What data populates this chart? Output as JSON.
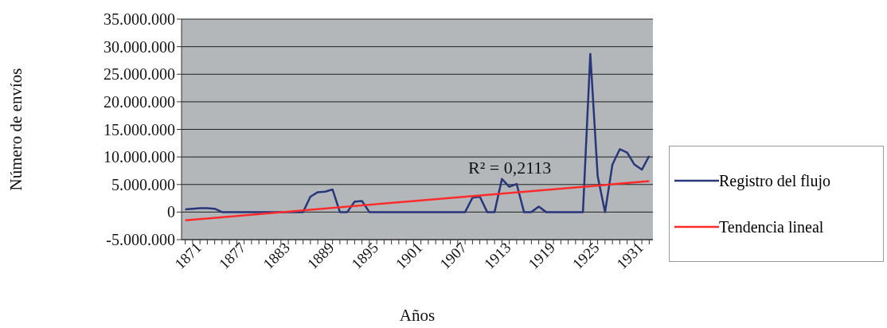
{
  "chart_data": {
    "type": "line",
    "xlabel": "Años",
    "ylabel": "Número de envíos",
    "x": [
      1871,
      1872,
      1873,
      1874,
      1875,
      1876,
      1877,
      1878,
      1879,
      1880,
      1881,
      1882,
      1883,
      1884,
      1885,
      1886,
      1887,
      1888,
      1889,
      1890,
      1891,
      1892,
      1893,
      1894,
      1895,
      1896,
      1897,
      1898,
      1899,
      1900,
      1901,
      1902,
      1903,
      1904,
      1905,
      1906,
      1907,
      1908,
      1909,
      1910,
      1911,
      1912,
      1913,
      1914,
      1915,
      1916,
      1917,
      1918,
      1919,
      1920,
      1921,
      1922,
      1923,
      1924,
      1925,
      1926,
      1927,
      1928,
      1929,
      1930,
      1931,
      1932,
      1933,
      1934
    ],
    "series": [
      {
        "name": "Registro del flujo",
        "color": "#28367a",
        "values": [
          500000,
          600000,
          700000,
          700000,
          600000,
          0,
          0,
          0,
          0,
          0,
          0,
          0,
          0,
          0,
          0,
          0,
          0,
          2800000,
          3600000,
          3700000,
          4100000,
          0,
          0,
          1900000,
          2000000,
          0,
          0,
          0,
          0,
          0,
          0,
          0,
          0,
          0,
          0,
          0,
          0,
          0,
          0,
          2600000,
          2800000,
          0,
          0,
          6000000,
          4600000,
          5100000,
          0,
          0,
          1000000,
          0,
          0,
          0,
          0,
          0,
          0,
          28700000,
          6500000,
          0,
          8600000,
          11400000,
          10800000,
          8600000,
          7700000,
          10200000
        ]
      },
      {
        "name": "Tendencia lineal",
        "type": "line",
        "color": "#ff2a2a",
        "x": [
          1871,
          1934
        ],
        "values": [
          -1500000,
          5600000
        ]
      }
    ],
    "xlim": [
      1870.5,
      1934.5
    ],
    "xticks": [
      {
        "value": 1871,
        "label": "1871"
      },
      {
        "value": 1872,
        "label": null
      },
      {
        "value": 1873,
        "label": null
      },
      {
        "value": 1874,
        "label": null
      },
      {
        "value": 1875,
        "label": null
      },
      {
        "value": 1876,
        "label": null
      },
      {
        "value": 1877,
        "label": "1877"
      },
      {
        "value": 1878,
        "label": null
      },
      {
        "value": 1879,
        "label": null
      },
      {
        "value": 1880,
        "label": null
      },
      {
        "value": 1881,
        "label": null
      },
      {
        "value": 1882,
        "label": null
      },
      {
        "value": 1883,
        "label": "1883"
      },
      {
        "value": 1884,
        "label": null
      },
      {
        "value": 1885,
        "label": null
      },
      {
        "value": 1886,
        "label": null
      },
      {
        "value": 1887,
        "label": null
      },
      {
        "value": 1888,
        "label": null
      },
      {
        "value": 1889,
        "label": "1889"
      },
      {
        "value": 1890,
        "label": null
      },
      {
        "value": 1891,
        "label": null
      },
      {
        "value": 1892,
        "label": null
      },
      {
        "value": 1893,
        "label": null
      },
      {
        "value": 1894,
        "label": null
      },
      {
        "value": 1895,
        "label": "1895"
      },
      {
        "value": 1896,
        "label": null
      },
      {
        "value": 1897,
        "label": null
      },
      {
        "value": 1898,
        "label": null
      },
      {
        "value": 1899,
        "label": null
      },
      {
        "value": 1900,
        "label": null
      },
      {
        "value": 1901,
        "label": "1901"
      },
      {
        "value": 1902,
        "label": null
      },
      {
        "value": 1903,
        "label": null
      },
      {
        "value": 1904,
        "label": null
      },
      {
        "value": 1905,
        "label": null
      },
      {
        "value": 1906,
        "label": null
      },
      {
        "value": 1907,
        "label": "1907"
      },
      {
        "value": 1908,
        "label": null
      },
      {
        "value": 1909,
        "label": null
      },
      {
        "value": 1910,
        "label": null
      },
      {
        "value": 1911,
        "label": null
      },
      {
        "value": 1912,
        "label": null
      },
      {
        "value": 1913,
        "label": "1913"
      },
      {
        "value": 1914,
        "label": null
      },
      {
        "value": 1915,
        "label": null
      },
      {
        "value": 1916,
        "label": null
      },
      {
        "value": 1917,
        "label": null
      },
      {
        "value": 1918,
        "label": null
      },
      {
        "value": 1919,
        "label": "1919"
      },
      {
        "value": 1920,
        "label": null
      },
      {
        "value": 1921,
        "label": null
      },
      {
        "value": 1922,
        "label": null
      },
      {
        "value": 1923,
        "label": null
      },
      {
        "value": 1924,
        "label": null
      },
      {
        "value": 1925,
        "label": "1925"
      },
      {
        "value": 1926,
        "label": null
      },
      {
        "value": 1927,
        "label": null
      },
      {
        "value": 1928,
        "label": null
      },
      {
        "value": 1929,
        "label": null
      },
      {
        "value": 1930,
        "label": null
      },
      {
        "value": 1931,
        "label": "1931"
      },
      {
        "value": 1932,
        "label": null
      },
      {
        "value": 1933,
        "label": null
      },
      {
        "value": 1934,
        "label": null
      }
    ],
    "ylim": [
      -5000000,
      35000000
    ],
    "yticks": [
      {
        "value": -5000000,
        "label": "-5.000.000"
      },
      {
        "value": 0,
        "label": "0"
      },
      {
        "value": 5000000,
        "label": "5.000.000"
      },
      {
        "value": 10000000,
        "label": "10.000.000"
      },
      {
        "value": 15000000,
        "label": "15.000.000"
      },
      {
        "value": 20000000,
        "label": "20.000.000"
      },
      {
        "value": 25000000,
        "label": "25.000.000"
      },
      {
        "value": 30000000,
        "label": "30.000.000"
      },
      {
        "value": 35000000,
        "label": "35.000.000"
      }
    ],
    "grid": "y",
    "legend": "right",
    "marker": "none",
    "line_style": "solid",
    "annotations": [
      "R² = 0,2113"
    ]
  }
}
